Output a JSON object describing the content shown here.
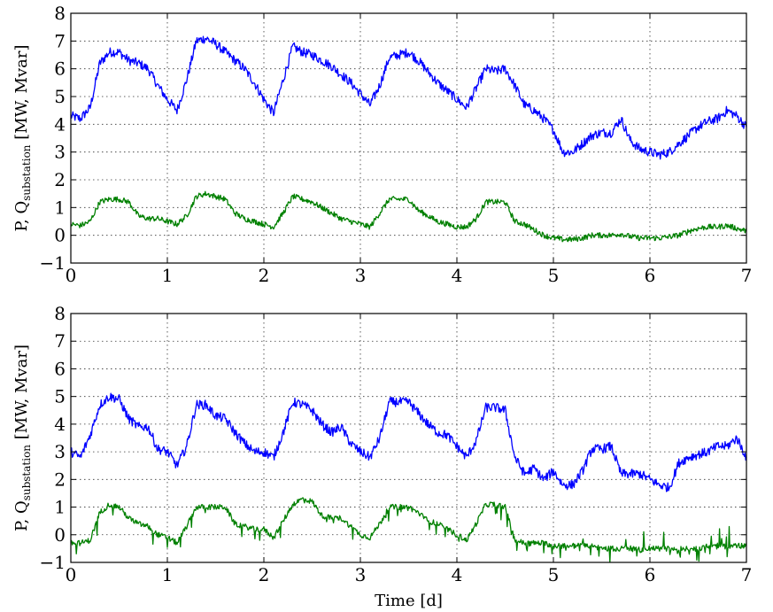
{
  "chart_data": [
    {
      "type": "line",
      "ylabel": {
        "main": "P, Q",
        "subscript": "substation",
        "unit": " [MW, Mvar]"
      },
      "xlabel": "",
      "xlim": [
        0,
        7
      ],
      "ylim": [
        -1,
        8
      ],
      "xticks": [
        "0",
        "1",
        "2",
        "3",
        "4",
        "5",
        "6",
        "7"
      ],
      "yticks": [
        "−1",
        "0",
        "1",
        "2",
        "3",
        "4",
        "5",
        "6",
        "7",
        "8"
      ],
      "grid": true,
      "series": [
        {
          "color": "#0000ff",
          "x": [
            0,
            0.1,
            0.2,
            0.3,
            0.4,
            0.5,
            0.6,
            0.7,
            0.8,
            0.9,
            1.0,
            1.1,
            1.2,
            1.3,
            1.4,
            1.5,
            1.6,
            1.7,
            1.8,
            1.9,
            2.0,
            2.1,
            2.2,
            2.3,
            2.4,
            2.5,
            2.6,
            2.7,
            2.8,
            2.9,
            3.0,
            3.1,
            3.2,
            3.3,
            3.4,
            3.5,
            3.6,
            3.7,
            3.8,
            3.9,
            4.0,
            4.1,
            4.2,
            4.3,
            4.4,
            4.5,
            4.6,
            4.7,
            4.8,
            4.9,
            5.0,
            5.1,
            5.2,
            5.3,
            5.4,
            5.5,
            5.6,
            5.7,
            5.8,
            5.9,
            6.0,
            6.1,
            6.2,
            6.3,
            6.4,
            6.5,
            6.6,
            6.7,
            6.8,
            6.9,
            7.0
          ],
          "y": [
            4.3,
            4.2,
            4.6,
            6.2,
            6.6,
            6.6,
            6.3,
            6.2,
            6.0,
            5.4,
            4.9,
            4.5,
            5.6,
            7.0,
            7.1,
            6.9,
            6.6,
            6.3,
            6.0,
            5.5,
            4.9,
            4.4,
            5.6,
            6.8,
            6.6,
            6.5,
            6.3,
            6.1,
            5.8,
            5.5,
            5.1,
            4.7,
            5.4,
            6.4,
            6.5,
            6.6,
            6.3,
            5.9,
            5.5,
            5.2,
            4.9,
            4.6,
            5.3,
            6.0,
            5.9,
            6.0,
            5.4,
            4.7,
            4.5,
            4.2,
            3.8,
            3.0,
            3.0,
            3.3,
            3.6,
            3.7,
            3.7,
            4.2,
            3.4,
            3.1,
            3.0,
            2.9,
            3.0,
            3.3,
            3.6,
            3.9,
            4.1,
            4.2,
            4.5,
            4.3,
            3.9
          ]
        },
        {
          "color": "#008000",
          "x": [
            0,
            0.1,
            0.2,
            0.3,
            0.4,
            0.5,
            0.6,
            0.7,
            0.8,
            0.9,
            1.0,
            1.1,
            1.2,
            1.3,
            1.4,
            1.5,
            1.6,
            1.7,
            1.8,
            1.9,
            2.0,
            2.1,
            2.2,
            2.3,
            2.4,
            2.5,
            2.6,
            2.7,
            2.8,
            2.9,
            3.0,
            3.1,
            3.2,
            3.3,
            3.4,
            3.5,
            3.6,
            3.7,
            3.8,
            3.9,
            4.0,
            4.1,
            4.2,
            4.3,
            4.4,
            4.5,
            4.6,
            4.7,
            4.8,
            4.9,
            5.0,
            5.1,
            5.2,
            5.3,
            5.4,
            5.5,
            5.6,
            5.7,
            5.8,
            5.9,
            6.0,
            6.1,
            6.2,
            6.3,
            6.4,
            6.5,
            6.6,
            6.7,
            6.8,
            6.9,
            7.0
          ],
          "y": [
            0.4,
            0.35,
            0.5,
            1.2,
            1.3,
            1.3,
            1.2,
            0.7,
            0.6,
            0.6,
            0.5,
            0.4,
            0.7,
            1.4,
            1.5,
            1.4,
            1.3,
            0.8,
            0.6,
            0.5,
            0.4,
            0.3,
            0.8,
            1.4,
            1.3,
            1.2,
            1.0,
            0.8,
            0.6,
            0.5,
            0.4,
            0.3,
            0.8,
            1.3,
            1.3,
            1.3,
            0.9,
            0.7,
            0.5,
            0.4,
            0.3,
            0.3,
            0.6,
            1.2,
            1.2,
            1.2,
            0.5,
            0.4,
            0.2,
            0.0,
            -0.1,
            -0.15,
            -0.15,
            -0.1,
            0.0,
            0.0,
            0.0,
            0.05,
            -0.05,
            -0.1,
            -0.1,
            -0.1,
            -0.05,
            0.0,
            0.15,
            0.25,
            0.3,
            0.3,
            0.35,
            0.25,
            0.15
          ]
        }
      ]
    },
    {
      "type": "line",
      "ylabel": {
        "main": "P, Q",
        "subscript": "substation",
        "unit": " [MW, Mvar]"
      },
      "xlabel": "Time [d]",
      "xlim": [
        0,
        7
      ],
      "ylim": [
        -1,
        8
      ],
      "xticks": [
        "0",
        "1",
        "2",
        "3",
        "4",
        "5",
        "6",
        "7"
      ],
      "yticks": [
        "−1",
        "0",
        "1",
        "2",
        "3",
        "4",
        "5",
        "6",
        "7",
        "8"
      ],
      "grid": true,
      "series": [
        {
          "color": "#0000ff",
          "x": [
            0,
            0.1,
            0.2,
            0.3,
            0.4,
            0.5,
            0.6,
            0.7,
            0.8,
            0.9,
            1.0,
            1.1,
            1.2,
            1.3,
            1.4,
            1.5,
            1.6,
            1.7,
            1.8,
            1.9,
            2.0,
            2.1,
            2.2,
            2.3,
            2.4,
            2.5,
            2.6,
            2.7,
            2.8,
            2.9,
            3.0,
            3.1,
            3.2,
            3.3,
            3.4,
            3.5,
            3.6,
            3.7,
            3.8,
            3.9,
            4.0,
            4.1,
            4.2,
            4.3,
            4.4,
            4.5,
            4.6,
            4.7,
            4.8,
            4.9,
            5.0,
            5.1,
            5.2,
            5.3,
            5.4,
            5.5,
            5.6,
            5.7,
            5.8,
            5.9,
            6.0,
            6.1,
            6.2,
            6.3,
            6.4,
            6.5,
            6.6,
            6.7,
            6.8,
            6.9,
            7.0
          ],
          "y": [
            3.0,
            2.8,
            3.6,
            4.7,
            5.0,
            4.9,
            4.2,
            3.9,
            3.9,
            3.1,
            3.0,
            2.5,
            3.2,
            4.7,
            4.7,
            4.3,
            4.2,
            3.7,
            3.3,
            3.0,
            3.0,
            2.8,
            3.7,
            4.8,
            4.7,
            4.5,
            4.0,
            3.7,
            3.9,
            3.3,
            3.0,
            2.8,
            3.5,
            4.8,
            4.8,
            4.8,
            4.4,
            4.0,
            3.7,
            3.6,
            3.2,
            2.8,
            3.4,
            4.6,
            4.6,
            4.5,
            2.8,
            2.2,
            2.4,
            2.0,
            2.3,
            1.8,
            1.8,
            2.3,
            3.1,
            3.1,
            3.2,
            2.2,
            2.2,
            2.2,
            2.0,
            1.8,
            1.7,
            2.6,
            2.8,
            2.9,
            3.0,
            3.2,
            3.2,
            3.5,
            2.8
          ]
        },
        {
          "color": "#008000",
          "x": [
            0,
            0.1,
            0.2,
            0.3,
            0.4,
            0.5,
            0.6,
            0.7,
            0.8,
            0.9,
            1.0,
            1.1,
            1.2,
            1.3,
            1.4,
            1.5,
            1.6,
            1.7,
            1.8,
            1.9,
            2.0,
            2.1,
            2.2,
            2.3,
            2.4,
            2.5,
            2.6,
            2.7,
            2.8,
            2.9,
            3.0,
            3.1,
            3.2,
            3.3,
            3.4,
            3.5,
            3.6,
            3.7,
            3.8,
            3.9,
            4.0,
            4.1,
            4.2,
            4.3,
            4.4,
            4.5,
            4.6,
            4.7,
            4.8,
            4.9,
            5.0,
            5.1,
            5.2,
            5.3,
            5.4,
            5.5,
            5.6,
            5.7,
            5.8,
            5.9,
            6.0,
            6.1,
            6.2,
            6.3,
            6.4,
            6.5,
            6.6,
            6.7,
            6.8,
            6.9,
            7.0
          ],
          "y": [
            -0.3,
            -0.3,
            -0.2,
            0.8,
            1.1,
            1.0,
            0.6,
            0.4,
            0.3,
            0.0,
            -0.1,
            -0.3,
            0.3,
            1.0,
            1.0,
            1.0,
            1.0,
            0.4,
            0.3,
            0.2,
            0.2,
            -0.1,
            0.5,
            1.1,
            1.3,
            1.2,
            0.7,
            0.6,
            0.6,
            0.3,
            0.0,
            -0.1,
            0.4,
            1.0,
            1.0,
            1.0,
            0.8,
            0.5,
            0.4,
            0.2,
            0.0,
            -0.2,
            0.4,
            1.1,
            1.1,
            1.0,
            -0.2,
            -0.3,
            -0.3,
            -0.3,
            -0.4,
            -0.4,
            -0.4,
            -0.4,
            -0.4,
            -0.5,
            -0.5,
            -0.5,
            -0.5,
            -0.55,
            -0.5,
            -0.5,
            -0.5,
            -0.6,
            -0.5,
            -0.5,
            -0.4,
            -0.4,
            -0.4,
            -0.4,
            -0.4
          ]
        }
      ]
    }
  ]
}
